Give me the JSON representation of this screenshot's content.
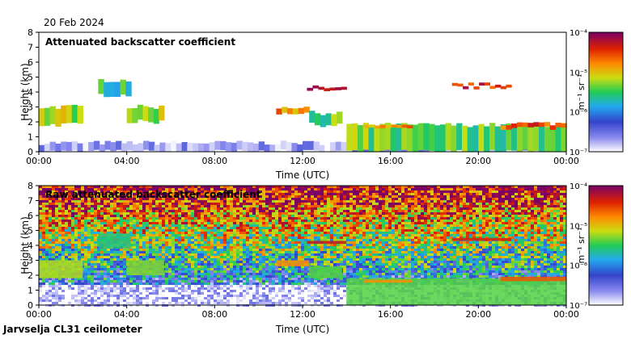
{
  "header": {
    "date": "20 Feb 2024"
  },
  "footer": {
    "site": "Jarvselja CL31 ceilometer"
  },
  "chart_data": [
    {
      "type": "heatmap",
      "title": "Attenuated backscatter coefficient",
      "xlabel": "Time (UTC)",
      "ylabel": "Height (km)",
      "xlim": [
        0,
        24
      ],
      "ylim": [
        0,
        8
      ],
      "xticks": [
        "00:00",
        "04:00",
        "08:00",
        "12:00",
        "16:00",
        "20:00",
        "00:00"
      ],
      "yticks": [
        "0",
        "1",
        "2",
        "3",
        "4",
        "5",
        "6",
        "7",
        "8"
      ],
      "colorbar": {
        "label": "m⁻¹ sr⁻¹",
        "ticks": [
          "10⁻⁴",
          "10⁻⁵",
          "10⁻⁶",
          "10⁻⁷"
        ],
        "scale": "log",
        "range": [
          1e-07,
          0.0001
        ]
      },
      "features": [
        {
          "name": "boundary-layer",
          "t0": 0,
          "t1": 24,
          "h0": 0,
          "h1": 0.6,
          "level": -6.7
        },
        {
          "name": "low-cloud-morning",
          "t0": 0,
          "t1": 2.0,
          "h0": 1.8,
          "h1": 3.0,
          "level": -5.2
        },
        {
          "name": "cloud-0330",
          "t0": 2.7,
          "t1": 4.2,
          "h0": 3.8,
          "h1": 4.8,
          "level": -5.6
        },
        {
          "name": "cloud-0430",
          "t0": 4.0,
          "t1": 5.7,
          "h0": 2.0,
          "h1": 3.0,
          "level": -5.3
        },
        {
          "name": "cloud-1200",
          "t0": 10.8,
          "t1": 12.3,
          "h0": 2.6,
          "h1": 3.0,
          "level": -4.8
        },
        {
          "name": "cloud-1300",
          "t0": 12.3,
          "t1": 13.8,
          "h0": 1.8,
          "h1": 2.6,
          "level": -5.4
        },
        {
          "name": "high-layer-1300",
          "t0": 12.2,
          "t1": 14.0,
          "h0": 4.1,
          "h1": 4.3,
          "level": -4.3
        },
        {
          "name": "precip-1500",
          "t0": 14.0,
          "t1": 24,
          "h0": 0,
          "h1": 1.8,
          "level": -5.4
        },
        {
          "name": "layer-1600",
          "t0": 14.8,
          "t1": 17.0,
          "h0": 1.5,
          "h1": 1.7,
          "level": -4.8
        },
        {
          "name": "high-layer-2000",
          "t0": 18.8,
          "t1": 21.5,
          "h0": 4.3,
          "h1": 4.5,
          "level": -4.4
        },
        {
          "name": "descending-layer",
          "t0": 21.0,
          "t1": 24,
          "h0": 1.6,
          "h1": 1.9,
          "level": -4.6
        }
      ]
    },
    {
      "type": "heatmap",
      "title": "Raw attenuated backscatter coefficient",
      "xlabel": "Time (UTC)",
      "ylabel": "Height (km)",
      "xlim": [
        0,
        24
      ],
      "ylim": [
        0,
        8
      ],
      "xticks": [
        "00:00",
        "04:00",
        "08:00",
        "12:00",
        "16:00",
        "20:00",
        "00:00"
      ],
      "yticks": [
        "0",
        "1",
        "2",
        "3",
        "4",
        "5",
        "6",
        "7",
        "8"
      ],
      "colorbar": {
        "label": "m⁻¹ sr⁻¹",
        "ticks": [
          "10⁻⁴",
          "10⁻⁵",
          "10⁻⁶",
          "10⁻⁷"
        ],
        "scale": "log",
        "range": [
          1e-07,
          0.0001
        ]
      },
      "noise": "high noise above 3 km, saturating near top"
    }
  ]
}
